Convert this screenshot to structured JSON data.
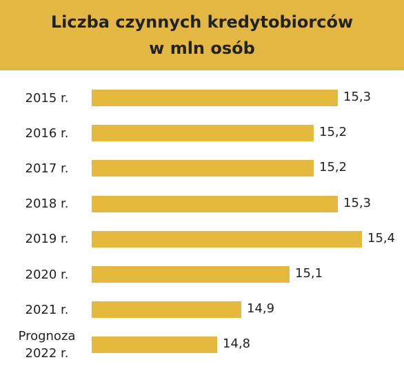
{
  "chart_data": {
    "type": "bar",
    "orientation": "horizontal",
    "title": "Liczba czynnych kredytobiorców",
    "subtitle": "w mln osób",
    "categories": [
      "2015 r.",
      "2016 r.",
      "2017 r.",
      "2018 r.",
      "2019 r.",
      "2020 r.",
      "2021 r.",
      "Prognoza 2022 r."
    ],
    "values": [
      15.3,
      15.2,
      15.2,
      15.3,
      15.4,
      15.1,
      14.9,
      14.8
    ],
    "value_labels": [
      "15,3",
      "15,2",
      "15,2",
      "15,3",
      "15,4",
      "15,1",
      "14,9",
      "14,8"
    ],
    "color": "#e5b93c",
    "header_color": "#e2b842",
    "xlim": [
      14.28,
      15.5
    ]
  }
}
